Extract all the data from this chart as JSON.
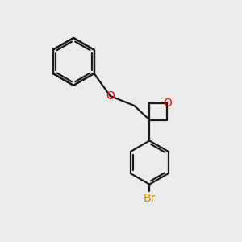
{
  "bg_color": "#ebebeb",
  "bond_color": "#1a1a1a",
  "oxygen_color": "#ff0000",
  "bromine_color": "#cc8800",
  "line_width": 1.6,
  "figsize": [
    3.0,
    3.0
  ],
  "dpi": 100,
  "xlim": [
    0,
    10
  ],
  "ylim": [
    0,
    10
  ]
}
